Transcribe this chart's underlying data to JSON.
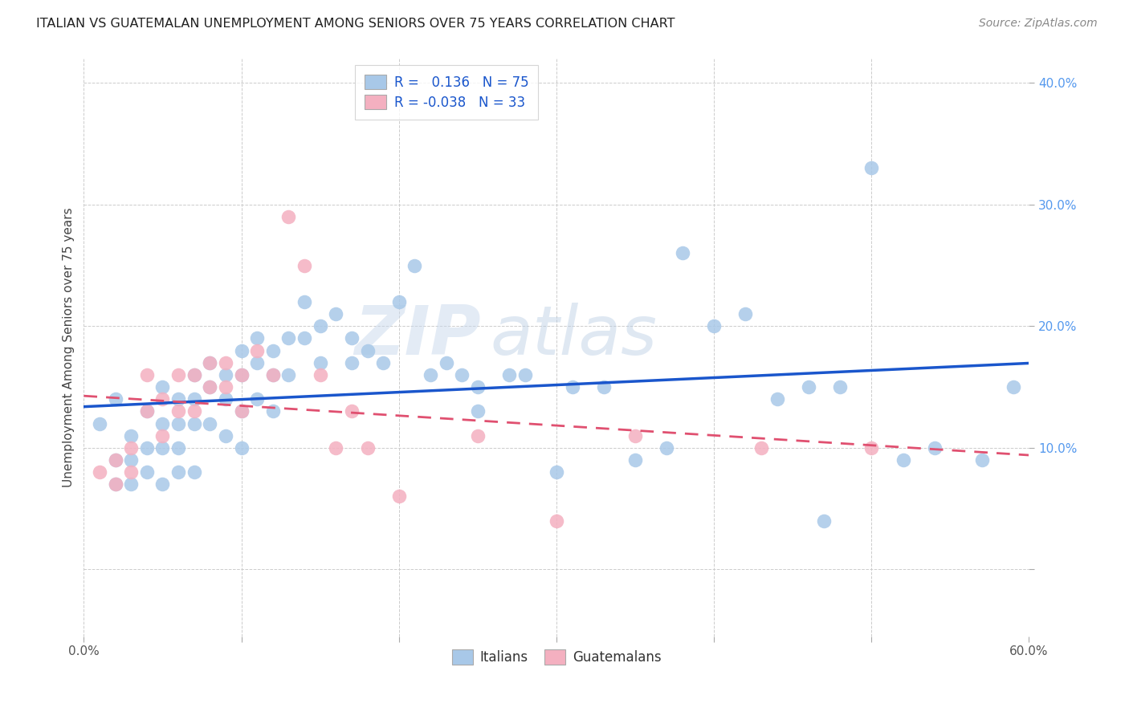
{
  "title": "ITALIAN VS GUATEMALAN UNEMPLOYMENT AMONG SENIORS OVER 75 YEARS CORRELATION CHART",
  "source": "Source: ZipAtlas.com",
  "ylabel": "Unemployment Among Seniors over 75 years",
  "watermark_zip": "ZIP",
  "watermark_atlas": "atlas",
  "italian_R": 0.136,
  "italian_N": 75,
  "guatemalan_R": -0.038,
  "guatemalan_N": 33,
  "italian_color": "#a8c8e8",
  "guatemalan_color": "#f4b0c0",
  "italian_line_color": "#1a56cc",
  "guatemalan_line_color": "#e05070",
  "guatemalan_line_dash": [
    6,
    4
  ],
  "background_color": "#ffffff",
  "grid_color": "#cccccc",
  "ytick_color": "#5599ee",
  "xtick_color": "#555555",
  "italian_x": [
    0.01,
    0.02,
    0.02,
    0.02,
    0.03,
    0.03,
    0.03,
    0.04,
    0.04,
    0.04,
    0.05,
    0.05,
    0.05,
    0.05,
    0.06,
    0.06,
    0.06,
    0.06,
    0.07,
    0.07,
    0.07,
    0.07,
    0.08,
    0.08,
    0.08,
    0.09,
    0.09,
    0.09,
    0.1,
    0.1,
    0.1,
    0.1,
    0.11,
    0.11,
    0.11,
    0.12,
    0.12,
    0.12,
    0.13,
    0.13,
    0.14,
    0.14,
    0.15,
    0.15,
    0.16,
    0.17,
    0.17,
    0.18,
    0.19,
    0.2,
    0.21,
    0.22,
    0.23,
    0.24,
    0.25,
    0.25,
    0.27,
    0.28,
    0.3,
    0.31,
    0.33,
    0.35,
    0.37,
    0.38,
    0.4,
    0.42,
    0.44,
    0.46,
    0.47,
    0.48,
    0.5,
    0.52,
    0.54,
    0.57,
    0.59
  ],
  "italian_y": [
    0.12,
    0.14,
    0.09,
    0.07,
    0.11,
    0.09,
    0.07,
    0.13,
    0.1,
    0.08,
    0.15,
    0.12,
    0.1,
    0.07,
    0.14,
    0.12,
    0.1,
    0.08,
    0.16,
    0.14,
    0.12,
    0.08,
    0.17,
    0.15,
    0.12,
    0.16,
    0.14,
    0.11,
    0.18,
    0.16,
    0.13,
    0.1,
    0.19,
    0.17,
    0.14,
    0.18,
    0.16,
    0.13,
    0.19,
    0.16,
    0.22,
    0.19,
    0.2,
    0.17,
    0.21,
    0.19,
    0.17,
    0.18,
    0.17,
    0.22,
    0.25,
    0.16,
    0.17,
    0.16,
    0.15,
    0.13,
    0.16,
    0.16,
    0.08,
    0.15,
    0.15,
    0.09,
    0.1,
    0.26,
    0.2,
    0.21,
    0.14,
    0.15,
    0.04,
    0.15,
    0.33,
    0.09,
    0.1,
    0.09,
    0.15
  ],
  "guatemalan_x": [
    0.01,
    0.02,
    0.02,
    0.03,
    0.03,
    0.04,
    0.04,
    0.05,
    0.05,
    0.06,
    0.06,
    0.07,
    0.07,
    0.08,
    0.08,
    0.09,
    0.09,
    0.1,
    0.1,
    0.11,
    0.12,
    0.13,
    0.14,
    0.15,
    0.16,
    0.17,
    0.18,
    0.2,
    0.25,
    0.3,
    0.35,
    0.43,
    0.5
  ],
  "guatemalan_y": [
    0.08,
    0.09,
    0.07,
    0.1,
    0.08,
    0.16,
    0.13,
    0.14,
    0.11,
    0.16,
    0.13,
    0.16,
    0.13,
    0.17,
    0.15,
    0.17,
    0.15,
    0.16,
    0.13,
    0.18,
    0.16,
    0.29,
    0.25,
    0.16,
    0.1,
    0.13,
    0.1,
    0.06,
    0.11,
    0.04,
    0.11,
    0.1,
    0.1
  ],
  "xlim": [
    0.0,
    0.6
  ],
  "ylim": [
    -0.055,
    0.42
  ],
  "xticks": [
    0.0,
    0.1,
    0.2,
    0.3,
    0.4,
    0.5,
    0.6
  ],
  "yticks": [
    0.0,
    0.1,
    0.2,
    0.3,
    0.4
  ]
}
